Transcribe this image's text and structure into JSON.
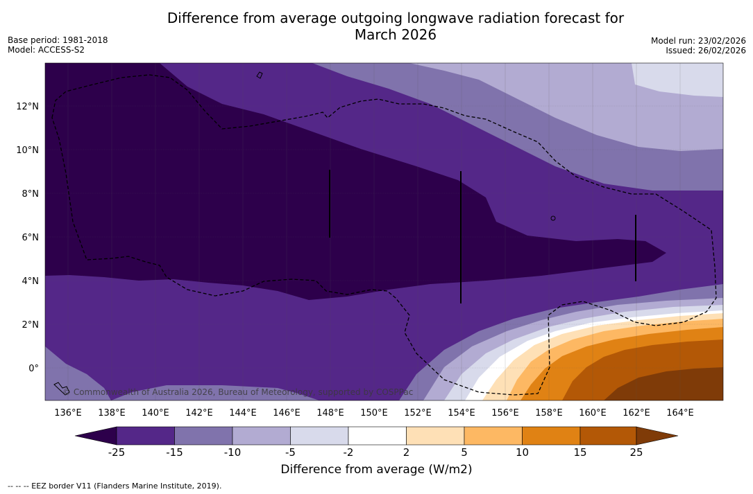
{
  "title": {
    "line1": "Difference from average outgoing longwave radiation forecast for",
    "line2": "March 2026"
  },
  "meta": {
    "base_period": "Base period: 1981-2018",
    "model": "Model: ACCESS-S2",
    "model_run": "Model run: 23/02/2026",
    "issued": "Issued: 26/02/2026"
  },
  "map": {
    "lon_ticks": [
      "136°E",
      "138°E",
      "140°E",
      "142°E",
      "144°E",
      "146°E",
      "148°E",
      "150°E",
      "152°E",
      "154°E",
      "156°E",
      "158°E",
      "160°E",
      "162°E",
      "164°E"
    ],
    "lat_ticks": [
      "12°N",
      "10°N",
      "8°N",
      "6°N",
      "4°N",
      "2°N",
      "0°"
    ],
    "copyright": "© Commonwealth of Australia 2026, Bureau of Meteorology, supported by COSPPac",
    "legend_line": "EEZ border"
  },
  "colorbar": {
    "title": "Difference from average (W/m2)",
    "tick_labels": [
      "-25",
      "-15",
      "-10",
      "-5",
      "-2",
      "2",
      "5",
      "10",
      "15",
      "25"
    ],
    "colors": {
      "c_le_m25": "#2d004b",
      "c_m25_m15": "#542788",
      "c_m15_m10": "#8073ac",
      "c_m10_m5": "#b2abd2",
      "c_m5_m2": "#d8daeb",
      "c_m2_2": "#ffffff",
      "c_2_5": "#fee0b6",
      "c_5_10": "#fdb863",
      "c_10_15": "#e08214",
      "c_15_25": "#b35806",
      "c_ge_25": "#7f3b08"
    }
  },
  "footer": "-- -- -- EEZ border V11 (Flanders Marine Institute, 2019)."
}
